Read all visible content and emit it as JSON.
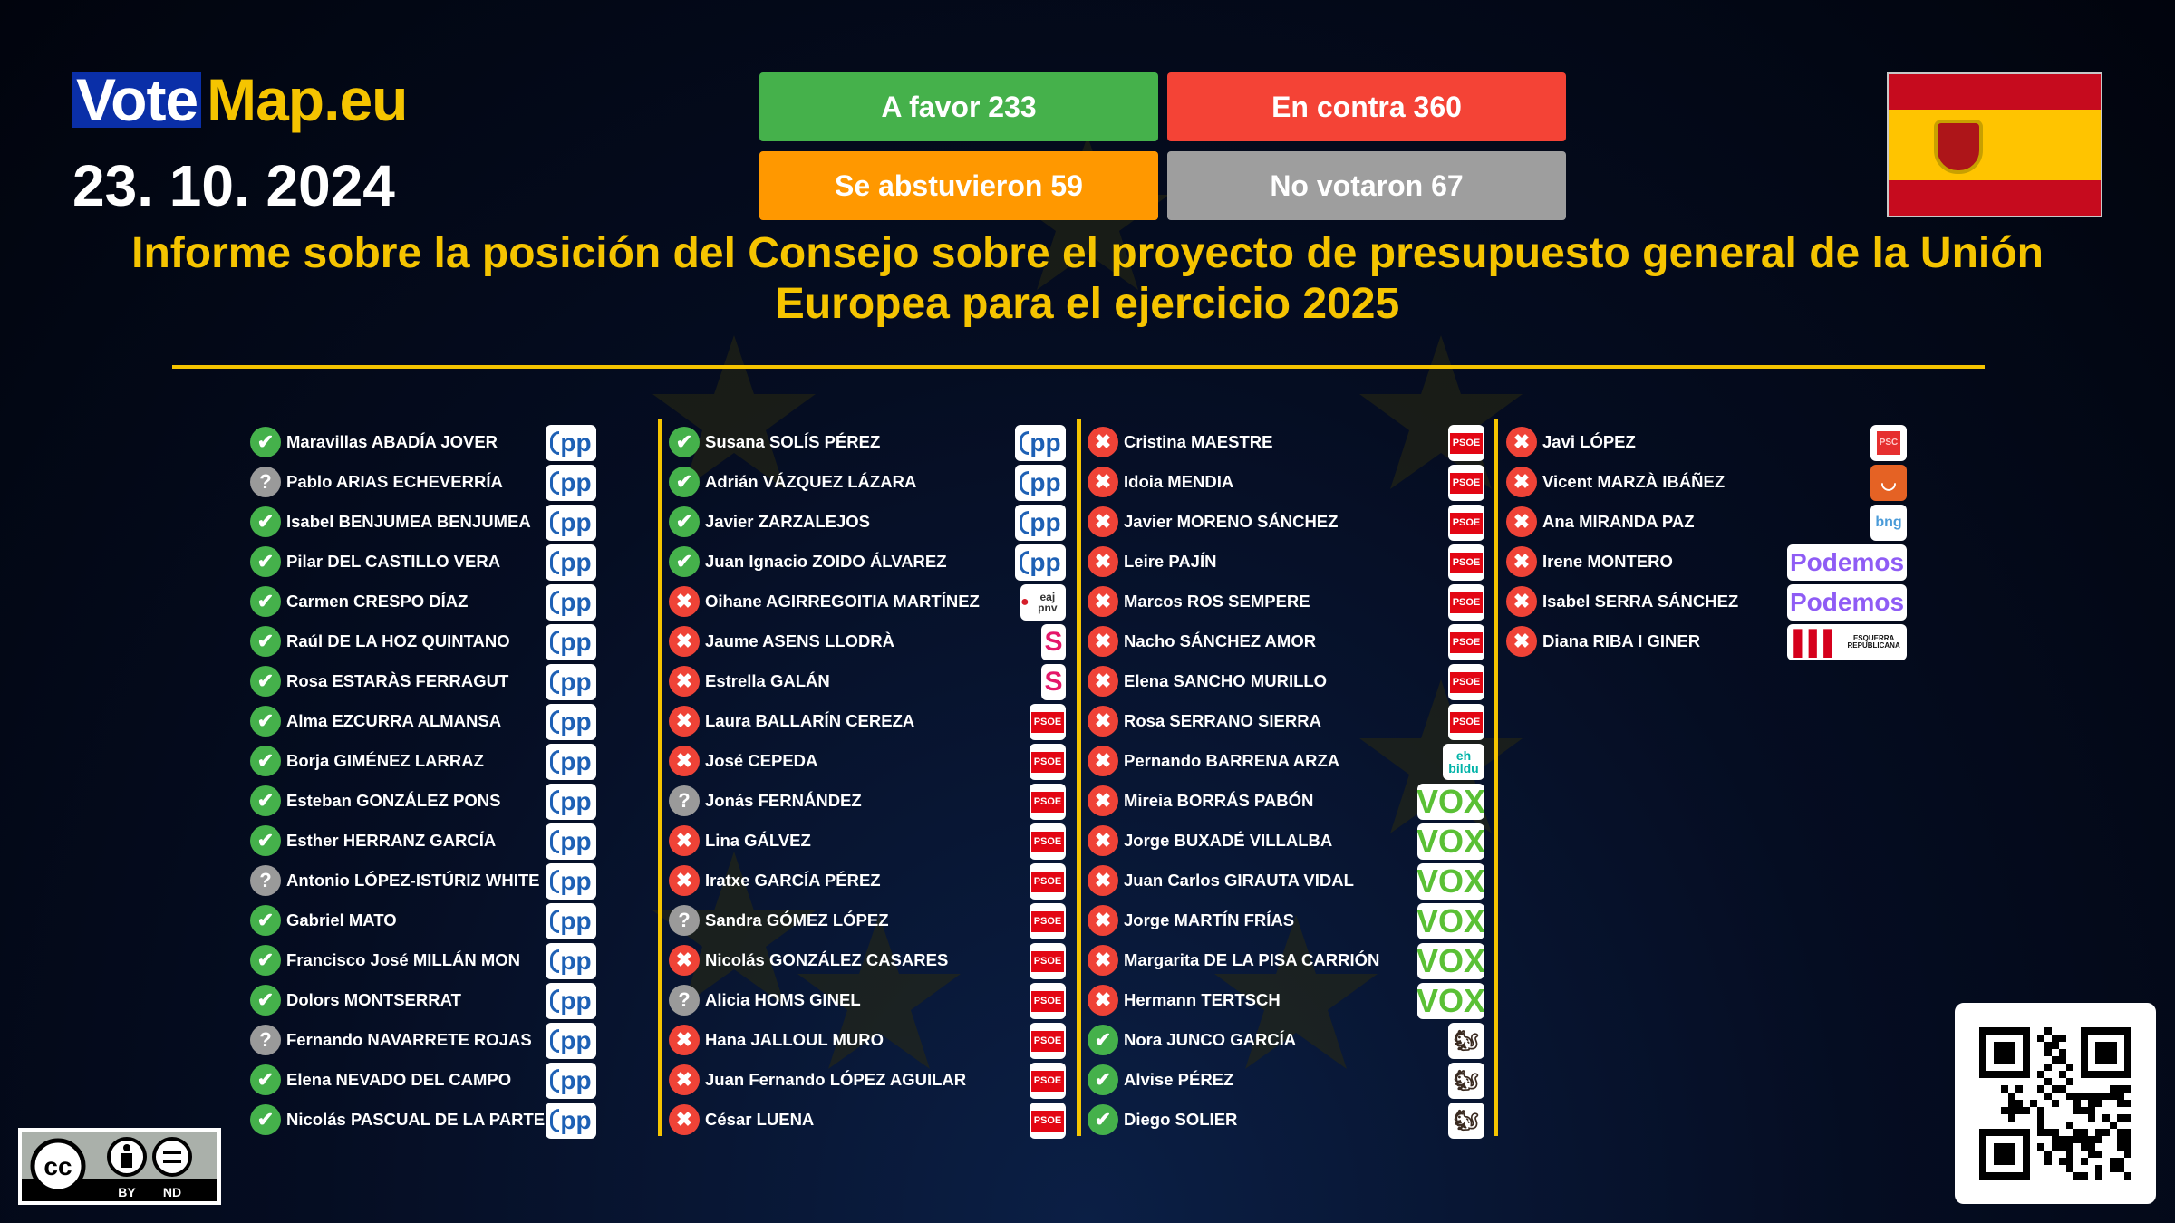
{
  "header": {
    "logo_vote": "Vote",
    "logo_map": "Map.eu",
    "date": "23. 10. 2024",
    "title": "Informe sobre la posición del Consejo sobre el proyecto de presupuesto general de la Unión Europea para el ejercicio 2025"
  },
  "results": {
    "for": "A favor 233",
    "against": "En contra 360",
    "abstain": "Se abstuvieron 59",
    "absent": "No votaron 67"
  },
  "colors": {
    "for": "#45b14b",
    "against": "#f44336",
    "abstain": "#ff9800",
    "absent": "#9e9e9e",
    "accent": "#f5c400"
  },
  "country": "Spain",
  "license": {
    "label": "CC BY ND",
    "by": "BY",
    "nd": "ND"
  },
  "columns": [
    [
      [
        "Maravillas ABADÍA JOVER",
        "for",
        "PP"
      ],
      [
        "Pablo ARIAS ECHEVERRÍA",
        "absent",
        "PP"
      ],
      [
        "Isabel BENJUMEA BENJUMEA",
        "for",
        "PP"
      ],
      [
        "Pilar DEL CASTILLO VERA",
        "for",
        "PP"
      ],
      [
        "Carmen CRESPO DÍAZ",
        "for",
        "PP"
      ],
      [
        "Raúl DE LA HOZ QUINTANO",
        "for",
        "PP"
      ],
      [
        "Rosa ESTARÀS FERRAGUT",
        "for",
        "PP"
      ],
      [
        "Alma EZCURRA ALMANSA",
        "for",
        "PP"
      ],
      [
        "Borja GIMÉNEZ LARRAZ",
        "for",
        "PP"
      ],
      [
        "Esteban GONZÁLEZ PONS",
        "for",
        "PP"
      ],
      [
        "Esther HERRANZ GARCÍA",
        "for",
        "PP"
      ],
      [
        "Antonio LÓPEZ-ISTÚRIZ WHITE",
        "absent",
        "PP"
      ],
      [
        "Gabriel MATO",
        "for",
        "PP"
      ],
      [
        "Francisco José MILLÁN MON",
        "for",
        "PP"
      ],
      [
        "Dolors MONTSERRAT",
        "for",
        "PP"
      ],
      [
        "Fernando NAVARRETE ROJAS",
        "absent",
        "PP"
      ],
      [
        "Elena NEVADO DEL CAMPO",
        "for",
        "PP"
      ],
      [
        "Nicolás PASCUAL DE LA PARTE",
        "for",
        "PP"
      ]
    ],
    [
      [
        "Susana SOLÍS PÉREZ",
        "for",
        "PP"
      ],
      [
        "Adrián VÁZQUEZ LÁZARA",
        "for",
        "PP"
      ],
      [
        "Javier ZARZALEJOS",
        "for",
        "PP"
      ],
      [
        "Juan Ignacio ZOIDO ÁLVAREZ",
        "for",
        "PP"
      ],
      [
        "Oihane AGIRREGOITIA MARTÍNEZ",
        "against",
        "EAJ-PNV"
      ],
      [
        "Jaume ASENS LLODRÀ",
        "against",
        "Sumar"
      ],
      [
        "Estrella GALÁN",
        "against",
        "Sumar"
      ],
      [
        "Laura BALLARÍN CEREZA",
        "against",
        "PSOE"
      ],
      [
        "José CEPEDA",
        "against",
        "PSOE"
      ],
      [
        "Jonás FERNÁNDEZ",
        "absent",
        "PSOE"
      ],
      [
        "Lina GÁLVEZ",
        "against",
        "PSOE"
      ],
      [
        "Iratxe GARCÍA PÉREZ",
        "against",
        "PSOE"
      ],
      [
        "Sandra GÓMEZ LÓPEZ",
        "absent",
        "PSOE"
      ],
      [
        "Nicolás GONZÁLEZ CASARES",
        "against",
        "PSOE"
      ],
      [
        "Alicia HOMS GINEL",
        "absent",
        "PSOE"
      ],
      [
        "Hana JALLOUL MURO",
        "against",
        "PSOE"
      ],
      [
        "Juan Fernando LÓPEZ AGUILAR",
        "against",
        "PSOE"
      ],
      [
        "César LUENA",
        "against",
        "PSOE"
      ]
    ],
    [
      [
        "Cristina MAESTRE",
        "against",
        "PSOE"
      ],
      [
        "Idoia MENDIA",
        "against",
        "PSOE"
      ],
      [
        "Javier MORENO SÁNCHEZ",
        "against",
        "PSOE"
      ],
      [
        "Leire PAJÍN",
        "against",
        "PSOE"
      ],
      [
        "Marcos ROS SEMPERE",
        "against",
        "PSOE"
      ],
      [
        "Nacho SÁNCHEZ AMOR",
        "against",
        "PSOE"
      ],
      [
        "Elena SANCHO MURILLO",
        "against",
        "PSOE"
      ],
      [
        "Rosa SERRANO SIERRA",
        "against",
        "PSOE"
      ],
      [
        "Pernando BARRENA ARZA",
        "against",
        "EH Bildu"
      ],
      [
        "Mireia BORRÁS PABÓN",
        "against",
        "VOX"
      ],
      [
        "Jorge BUXADÉ VILLALBA",
        "against",
        "VOX"
      ],
      [
        "Juan Carlos GIRAUTA VIDAL",
        "against",
        "VOX"
      ],
      [
        "Jorge MARTÍN FRÍAS",
        "against",
        "VOX"
      ],
      [
        "Margarita DE LA PISA CARRIÓN",
        "against",
        "VOX"
      ],
      [
        "Hermann TERTSCH",
        "against",
        "VOX"
      ],
      [
        "Nora JUNCO GARCÍA",
        "for",
        "SALF"
      ],
      [
        "Alvise PÉREZ",
        "for",
        "SALF"
      ],
      [
        "Diego SOLIER",
        "for",
        "SALF"
      ]
    ],
    [
      [
        "Javi LÓPEZ",
        "against",
        "PSC"
      ],
      [
        "Vicent MARZÀ IBÁÑEZ",
        "against",
        "Compromís"
      ],
      [
        "Ana MIRANDA PAZ",
        "against",
        "BNG"
      ],
      [
        "Irene MONTERO",
        "against",
        "Podemos"
      ],
      [
        "Isabel SERRA SÁNCHEZ",
        "against",
        "Podemos"
      ],
      [
        "Diana RIBA I GINER",
        "against",
        "ERC"
      ]
    ]
  ],
  "party_logos": {
    "PP": "pp",
    "PSOE": "PSOE",
    "VOX": "VOX",
    "Podemos": "Podemos",
    "Sumar": "S",
    "EAJ-PNV": "eaj pnv",
    "EH Bildu": "eh bildu",
    "PSC": "PSC",
    "Compromís": "",
    "BNG": "bng",
    "ERC": "ESQUERRA REPUBLICANA",
    "SALF": ""
  }
}
